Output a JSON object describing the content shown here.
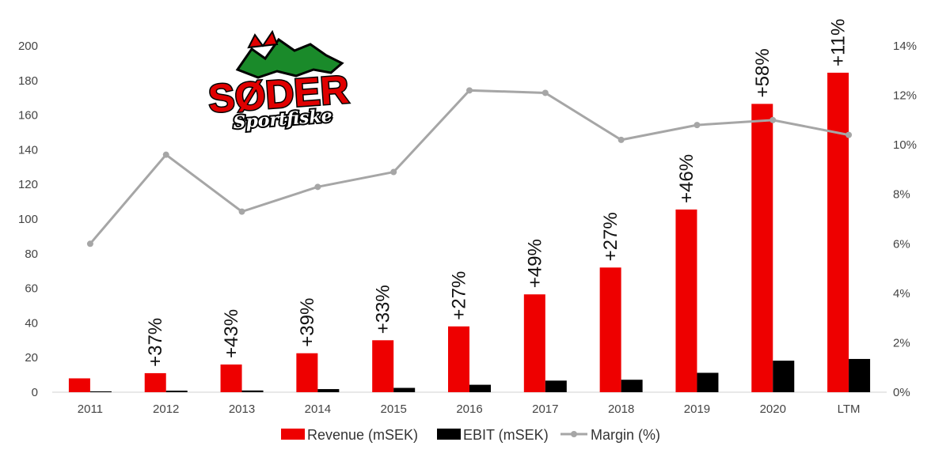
{
  "chart_data": {
    "type": "bar",
    "categories": [
      "2011",
      "2012",
      "2013",
      "2014",
      "2015",
      "2016",
      "2017",
      "2018",
      "2019",
      "2020",
      "LTM"
    ],
    "series": [
      {
        "name": "Revenue (mSEK)",
        "type": "bar",
        "axis": "left",
        "color": "#ee0000",
        "values": [
          8,
          11,
          16,
          22.5,
          30,
          38,
          56.5,
          72,
          105.5,
          166.5,
          184.5
        ]
      },
      {
        "name": "EBIT (mSEK)",
        "type": "bar",
        "axis": "left",
        "color": "#000000",
        "values": [
          0.5,
          0.9,
          1.0,
          1.8,
          2.5,
          4.3,
          6.7,
          7.2,
          11.2,
          18.2,
          19.2
        ]
      },
      {
        "name": "Margin (%)",
        "type": "line",
        "axis": "right",
        "color": "#a6a6a6",
        "values": [
          6.0,
          9.6,
          7.3,
          8.3,
          8.9,
          12.2,
          12.1,
          10.2,
          10.8,
          11.0,
          10.4
        ]
      }
    ],
    "growth_labels": [
      "",
      "+37%",
      "+43%",
      "+39%",
      "+33%",
      "+27%",
      "+49%",
      "+27%",
      "+46%",
      "+58%",
      "+11%"
    ],
    "y_left": {
      "min": 0,
      "max": 200,
      "ticks": [
        "0",
        "20",
        "40",
        "60",
        "80",
        "100",
        "120",
        "140",
        "160",
        "180",
        "200"
      ]
    },
    "y_right": {
      "min": 0,
      "max": 14,
      "ticks": [
        "0%",
        "2%",
        "4%",
        "6%",
        "8%",
        "10%",
        "12%",
        "14%"
      ]
    },
    "grid": false,
    "legend": "bottom"
  },
  "logo": {
    "title": "SØDER",
    "subtitle": "Sportfiske"
  }
}
